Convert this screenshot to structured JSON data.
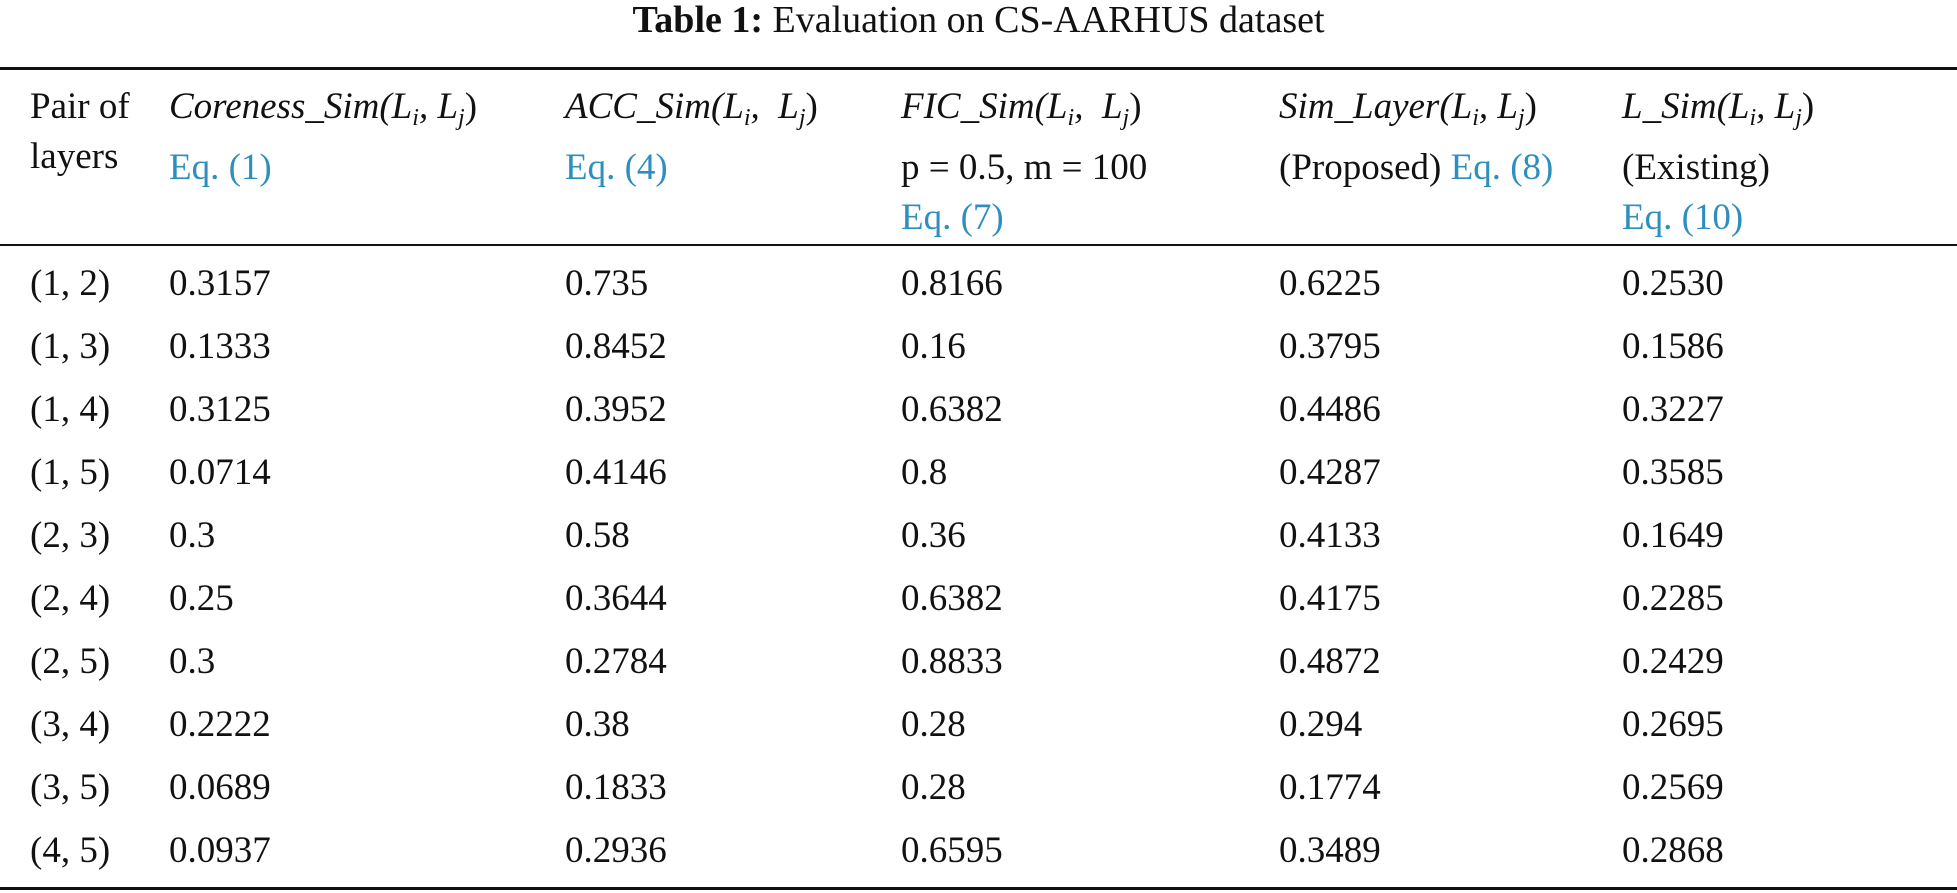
{
  "caption": {
    "label": "Table 1:",
    "text": "Evaluation on CS-AARHUS dataset"
  },
  "header": {
    "col0": {
      "line1": "Pair of",
      "line2": "layers"
    },
    "col1": {
      "name": "Coreness_Sim",
      "args_open": "(L",
      "i": "i",
      "sep": ", L",
      "j": "j",
      "args_close": ")",
      "eq": "Eq. (1)"
    },
    "col2": {
      "name": "ACC_Sim",
      "args_open": "(L",
      "i": "i",
      "sep": ",  L",
      "j": "j",
      "args_close": ")",
      "eq": "Eq. (4)"
    },
    "col3": {
      "name": "FIC_Sim",
      "args_open": "(L",
      "i": "i",
      "sep": ",  L",
      "j": "j",
      "args_close": ")",
      "params": "p = 0.5, m = 100",
      "eq": "Eq. (7)"
    },
    "col4": {
      "name": "Sim_Layer",
      "args_open": "(L",
      "i": "i",
      "sep": ", L",
      "j": "j",
      "args_close": ")",
      "note": "(Proposed)",
      "eq": "Eq. (8)"
    },
    "col5": {
      "name": "L_Sim",
      "args_open": "(L",
      "i": "i",
      "sep": ", L",
      "j": "j",
      "args_close": ")",
      "note": "(Existing)",
      "eq": "Eq. (10)"
    }
  },
  "rows": [
    [
      "(1, 2)",
      "0.3157",
      "0.735",
      "0.8166",
      "0.6225",
      "0.2530"
    ],
    [
      "(1, 3)",
      "0.1333",
      "0.8452",
      "0.16",
      "0.3795",
      "0.1586"
    ],
    [
      "(1, 4)",
      "0.3125",
      "0.3952",
      "0.6382",
      "0.4486",
      "0.3227"
    ],
    [
      "(1, 5)",
      "0.0714",
      "0.4146",
      "0.8",
      "0.4287",
      "0.3585"
    ],
    [
      "(2, 3)",
      "0.3",
      "0.58",
      "0.36",
      "0.4133",
      "0.1649"
    ],
    [
      "(2, 4)",
      "0.25",
      "0.3644",
      "0.6382",
      "0.4175",
      "0.2285"
    ],
    [
      "(2, 5)",
      "0.3",
      "0.2784",
      "0.8833",
      "0.4872",
      "0.2429"
    ],
    [
      "(3, 4)",
      "0.2222",
      "0.38",
      "0.28",
      "0.294",
      "0.2695"
    ],
    [
      "(3, 5)",
      "0.0689",
      "0.1833",
      "0.28",
      "0.1774",
      "0.2569"
    ],
    [
      "(4, 5)",
      "0.0937",
      "0.2936",
      "0.6595",
      "0.3489",
      "0.2868"
    ]
  ],
  "colors": {
    "text": "#111111",
    "equation_link": "#2e8fbe",
    "background": "#ffffff"
  }
}
